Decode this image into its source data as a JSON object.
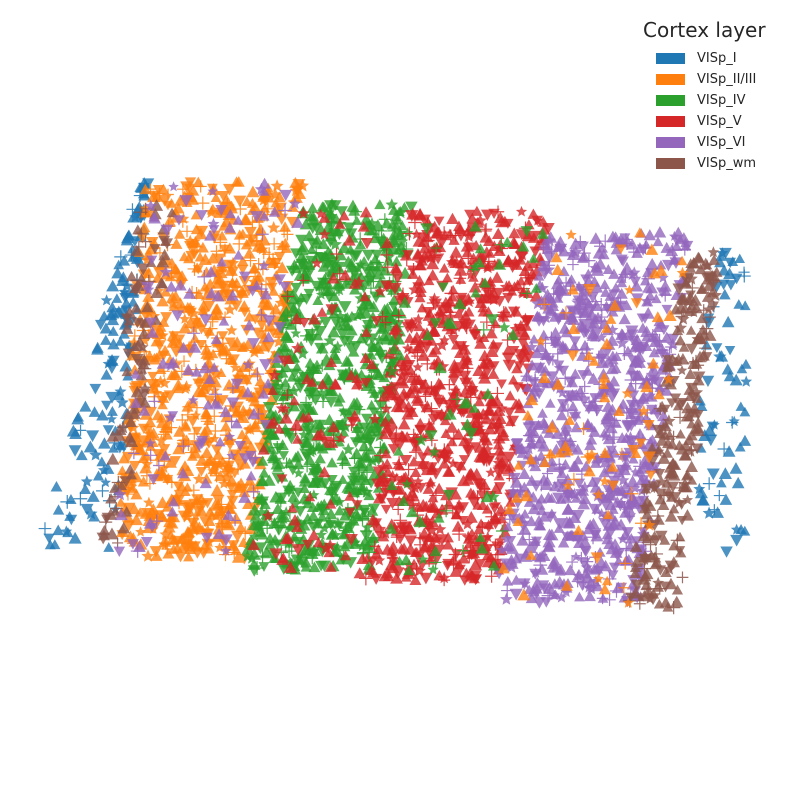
{
  "chart_data": {
    "type": "scatter",
    "title": "",
    "xlabel": "",
    "ylabel": "",
    "grid": false,
    "axes_visible": false,
    "legend": {
      "title": "Cortex layer",
      "placement": "top-right"
    },
    "marker_shapes": [
      "triangle-up",
      "triangle-down",
      "plus",
      "star"
    ],
    "series": [
      {
        "name": "VISp_I",
        "color": "#1f77b4"
      },
      {
        "name": "VISp_II/III",
        "color": "#ff7f0e"
      },
      {
        "name": "VISp_IV",
        "color": "#2ca02c"
      },
      {
        "name": "VISp_V",
        "color": "#d62728"
      },
      {
        "name": "VISp_VI",
        "color": "#9467bd"
      },
      {
        "name": "VISp_wm",
        "color": "#8c564b"
      }
    ]
  }
}
